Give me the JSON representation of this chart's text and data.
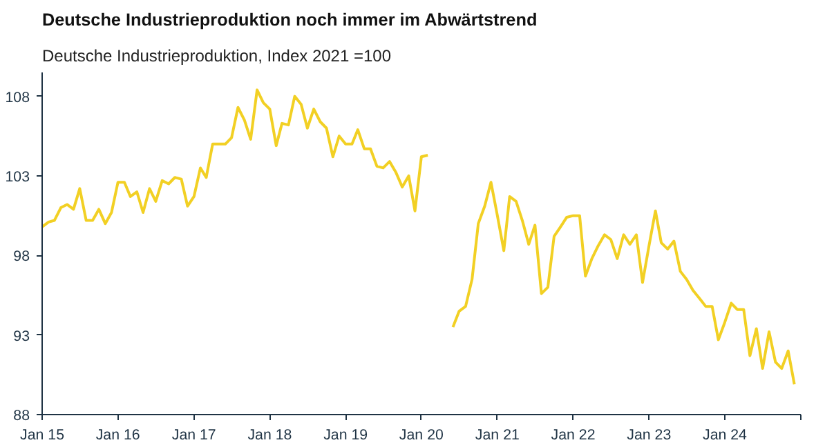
{
  "chart_data": {
    "type": "line",
    "title": "Deutsche Industrieproduktion noch immer im Abwärtstrend",
    "subtitle": "Deutsche Industrieproduktion, Index 2021 =100",
    "x": [
      "2015-01",
      "2015-02",
      "2015-03",
      "2015-04",
      "2015-05",
      "2015-06",
      "2015-07",
      "2015-08",
      "2015-09",
      "2015-10",
      "2015-11",
      "2015-12",
      "2016-01",
      "2016-02",
      "2016-03",
      "2016-04",
      "2016-05",
      "2016-06",
      "2016-07",
      "2016-08",
      "2016-09",
      "2016-10",
      "2016-11",
      "2016-12",
      "2017-01",
      "2017-02",
      "2017-03",
      "2017-04",
      "2017-05",
      "2017-06",
      "2017-07",
      "2017-08",
      "2017-09",
      "2017-10",
      "2017-11",
      "2017-12",
      "2018-01",
      "2018-02",
      "2018-03",
      "2018-04",
      "2018-05",
      "2018-06",
      "2018-07",
      "2018-08",
      "2018-09",
      "2018-10",
      "2018-11",
      "2018-12",
      "2019-01",
      "2019-02",
      "2019-03",
      "2019-04",
      "2019-05",
      "2019-06",
      "2019-07",
      "2019-08",
      "2019-09",
      "2019-10",
      "2019-11",
      "2019-12",
      "2020-01",
      "2020-02",
      "2020-03",
      "2020-04",
      "2020-05",
      "2020-06",
      "2020-07",
      "2020-08",
      "2020-09",
      "2020-10",
      "2020-11",
      "2020-12",
      "2021-01",
      "2021-02",
      "2021-03",
      "2021-04",
      "2021-05",
      "2021-06",
      "2021-07",
      "2021-08",
      "2021-09",
      "2021-10",
      "2021-11",
      "2021-12",
      "2022-01",
      "2022-02",
      "2022-03",
      "2022-04",
      "2022-05",
      "2022-06",
      "2022-07",
      "2022-08",
      "2022-09",
      "2022-10",
      "2022-11",
      "2022-12",
      "2023-01",
      "2023-02",
      "2023-03",
      "2023-04",
      "2023-05",
      "2023-06",
      "2023-07",
      "2023-08",
      "2023-09",
      "2023-10",
      "2023-11",
      "2023-12",
      "2024-01",
      "2024-02",
      "2024-03",
      "2024-04",
      "2024-05",
      "2024-06",
      "2024-07",
      "2024-08",
      "2024-09",
      "2024-10",
      "2024-11",
      "2024-12"
    ],
    "series": [
      {
        "color": "#f2d024",
        "values": [
          99.8,
          100.1,
          100.2,
          101.0,
          101.2,
          100.9,
          102.2,
          100.2,
          100.2,
          100.9,
          100.0,
          100.7,
          102.6,
          102.6,
          101.7,
          102.0,
          100.7,
          102.2,
          101.4,
          102.7,
          102.5,
          102.9,
          102.8,
          101.1,
          101.7,
          103.5,
          102.9,
          105.0,
          105.0,
          105.0,
          105.4,
          107.3,
          106.5,
          105.3,
          108.4,
          107.6,
          107.2,
          104.9,
          106.3,
          106.2,
          108.0,
          107.5,
          106.0,
          107.2,
          106.4,
          106.0,
          104.2,
          105.5,
          105.0,
          105.0,
          105.9,
          104.7,
          104.7,
          103.6,
          103.5,
          103.9,
          103.2,
          102.3,
          103.0,
          100.8,
          104.2,
          104.3,
          null,
          null,
          null,
          93.5,
          94.5,
          94.8,
          96.5,
          100.0,
          101.1,
          102.6,
          100.5,
          98.3,
          101.7,
          101.4,
          100.2,
          98.7,
          99.9,
          95.6,
          96.0,
          99.2,
          99.8,
          100.4,
          100.5,
          100.5,
          96.7,
          97.8,
          98.6,
          99.3,
          99.0,
          97.8,
          99.3,
          98.7,
          99.3,
          96.3,
          98.6,
          100.8,
          98.8,
          98.4,
          98.9,
          97.0,
          96.5,
          95.8,
          95.3,
          94.8,
          94.8,
          92.7,
          93.8,
          95.0,
          94.6,
          94.6,
          91.7,
          93.4,
          90.9,
          93.2,
          91.3,
          90.9,
          92.0,
          89.9
        ]
      }
    ],
    "xlim": [
      "2015-01",
      "2025-01"
    ],
    "xticks": [
      {
        "value": "2015-01",
        "label": "Jan 15"
      },
      {
        "value": "2016-01",
        "label": "Jan 16"
      },
      {
        "value": "2017-01",
        "label": "Jan 17"
      },
      {
        "value": "2018-01",
        "label": "Jan 18"
      },
      {
        "value": "2019-01",
        "label": "Jan 19"
      },
      {
        "value": "2020-01",
        "label": "Jan 20"
      },
      {
        "value": "2021-01",
        "label": "Jan 21"
      },
      {
        "value": "2022-01",
        "label": "Jan 22"
      },
      {
        "value": "2023-01",
        "label": "Jan 23"
      },
      {
        "value": "2024-01",
        "label": "Jan 24"
      },
      {
        "value": "2025-01",
        "label": null
      }
    ],
    "ylim": [
      88,
      109.5
    ],
    "yticks": [
      88,
      93,
      98,
      103,
      108
    ],
    "grid": false,
    "line_style": "solid"
  }
}
